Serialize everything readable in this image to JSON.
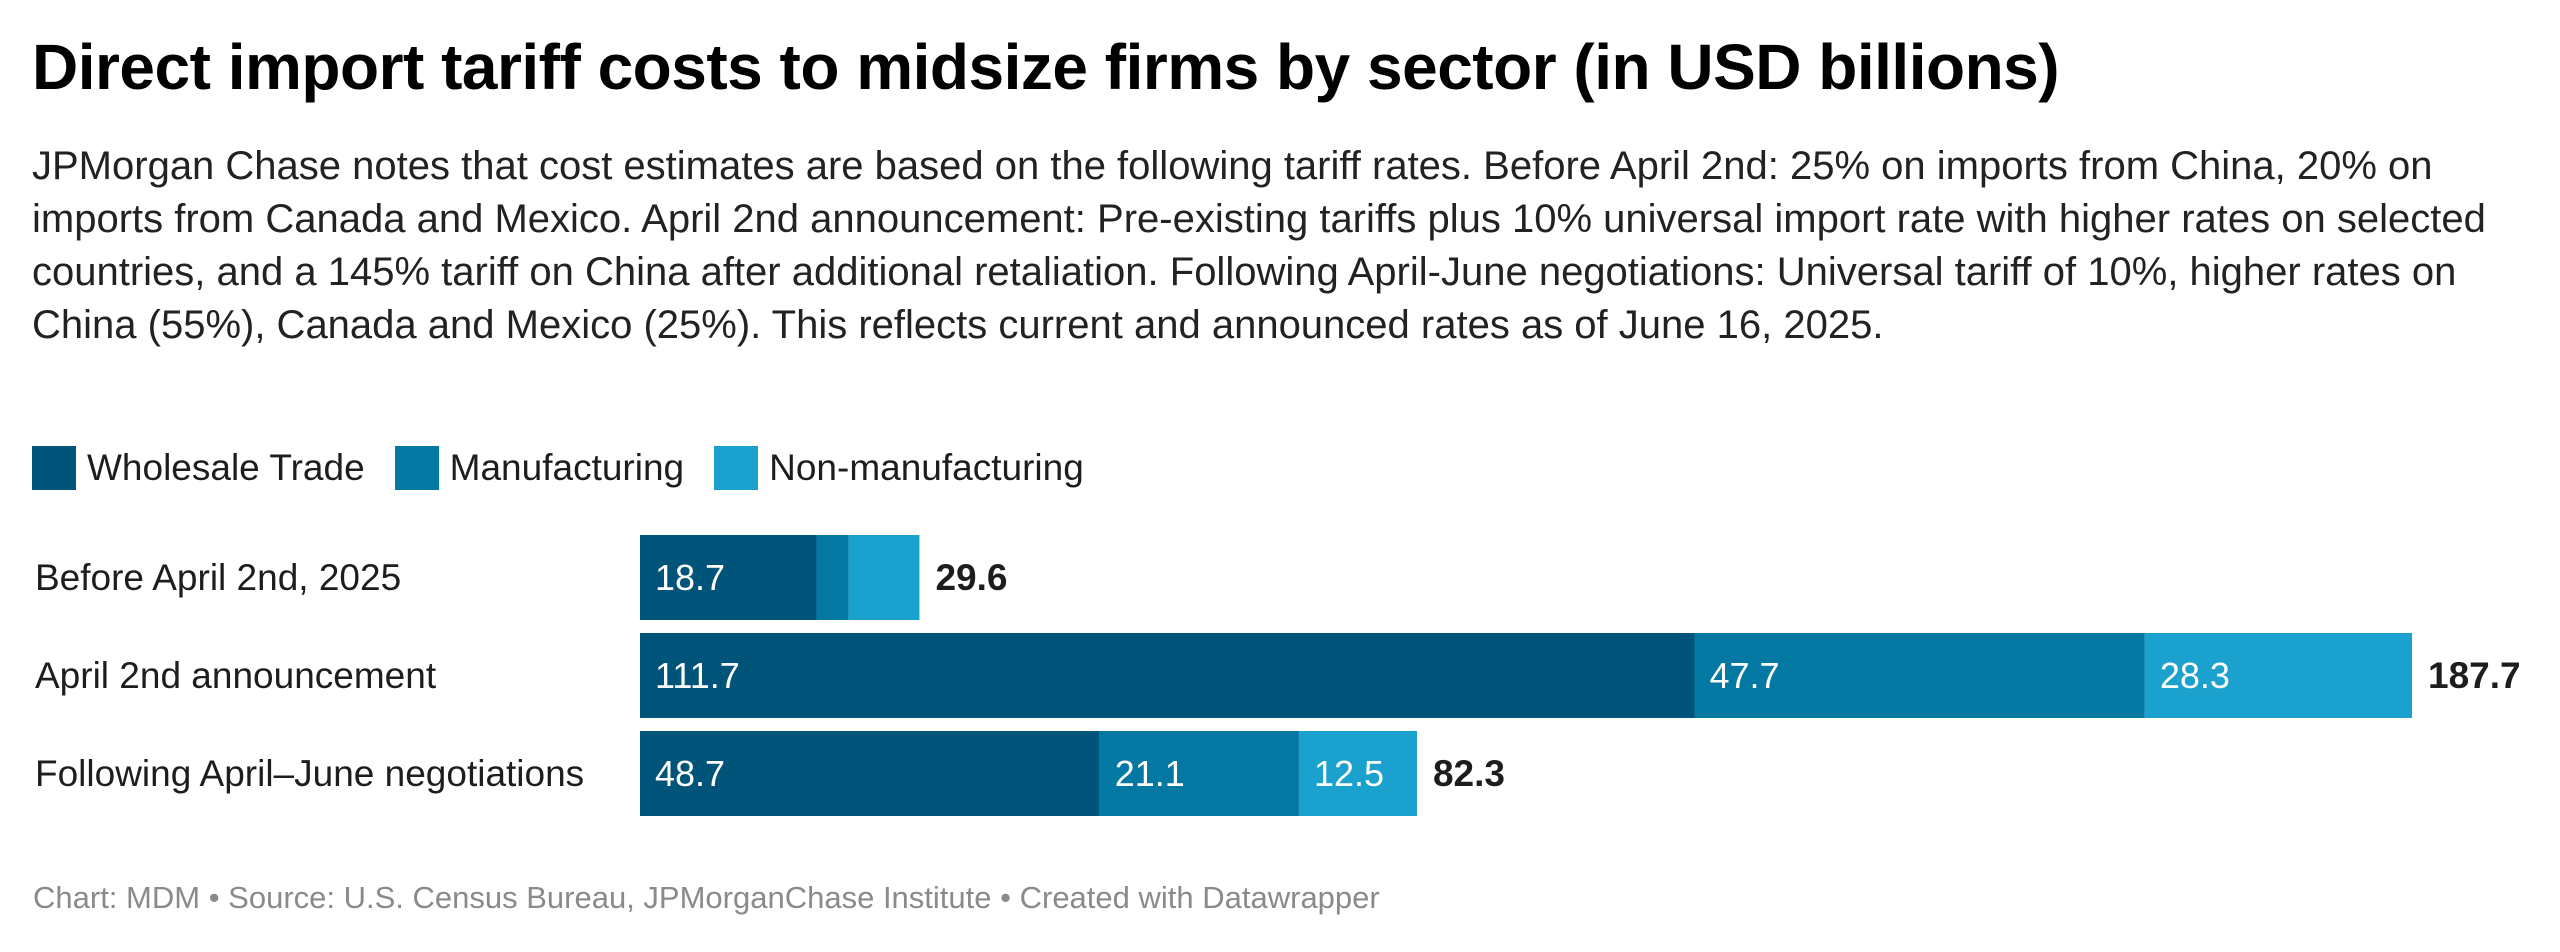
{
  "header": {
    "title": "Direct import tariff costs to midsize firms by sector (in USD billions)",
    "subtitle": "JPMorgan Chase notes that cost estimates are based on the following tariff rates. Before April 2nd: 25% on imports from China, 20% on imports from Canada and Mexico. April 2nd announcement: Pre-existing tariffs plus 10% universal import rate with higher rates on selected countries, and a 145% tariff on China after additional retaliation. Following April-June negotiations: Universal tariff of 10%, higher rates on China (55%), Canada and Mexico (25%). This reflects current and announced rates as of June 16, 2025."
  },
  "legend": [
    {
      "label": "Wholesale Trade",
      "color": "#015479"
    },
    {
      "label": "Manufacturing",
      "color": "#0378a3"
    },
    {
      "label": "Non-manufacturing",
      "color": "#1ba1cd"
    }
  ],
  "chart_data": {
    "type": "bar",
    "orientation": "horizontal",
    "stacked": true,
    "title": "Direct import tariff costs to midsize firms by sector (in USD billions)",
    "xlabel": "",
    "ylabel": "",
    "grid": false,
    "legend_position": "top-left",
    "categories": [
      "Before April 2nd, 2025",
      "April 2nd announcement",
      "Following April–June negotiations"
    ],
    "series": [
      {
        "name": "Wholesale Trade",
        "color": "#015479",
        "values": [
          18.7,
          111.7,
          48.7
        ],
        "labels": [
          "18.7",
          "111.7",
          "48.7"
        ]
      },
      {
        "name": "Manufacturing",
        "color": "#0378a3",
        "values": [
          3.4,
          47.7,
          21.1
        ],
        "labels": [
          "",
          "47.7",
          "21.1"
        ]
      },
      {
        "name": "Non-manufacturing",
        "color": "#1ba1cd",
        "values": [
          7.5,
          28.3,
          12.5
        ],
        "labels": [
          "",
          "28.3",
          "12.5"
        ]
      }
    ],
    "totals": [
      29.6,
      187.7,
      82.3
    ],
    "total_labels": [
      "29.6",
      "187.7",
      "82.3"
    ],
    "xlim": [
      0,
      187.7
    ]
  },
  "footer": {
    "chart_credit": "Chart: MDM",
    "separator": " • ",
    "source": "Source: U.S. Census Bureau, JPMorganChase Institute",
    "created_with": "Created with Datawrapper"
  }
}
